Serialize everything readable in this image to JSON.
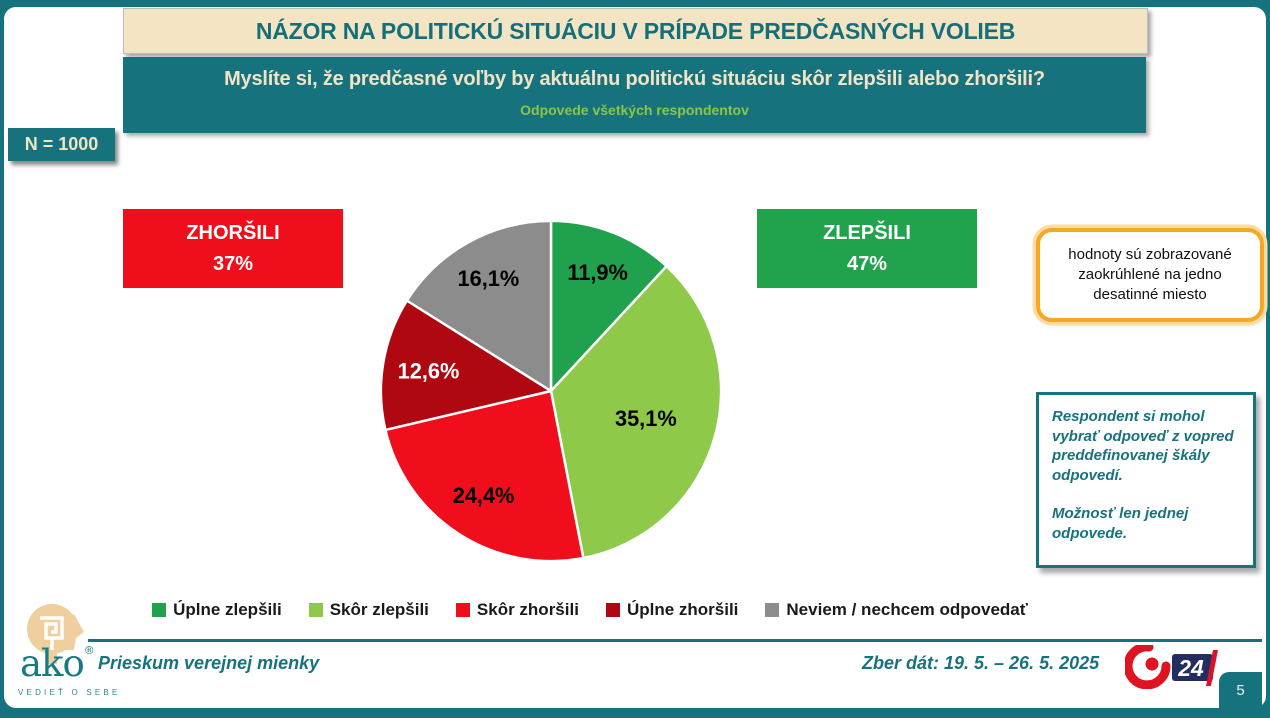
{
  "slide": {
    "title": "NÁZOR NA POLITICKÚ SITUÁCIU V PRÍPADE PREDČASNÝCH VOLIEB",
    "question": "Myslíte si, že predčasné voľby by aktuálnu politickú situáciu skôr zlepšili alebo zhoršili?",
    "subtitle": "Odpovede všetkých respondentov",
    "sample_size": "N = 1000",
    "page_number": "5"
  },
  "summary_boxes": {
    "worse": {
      "label": "ZHORŠILI",
      "value": "37%"
    },
    "better": {
      "label": "ZLEPŠILI",
      "value": "47%"
    }
  },
  "notes": {
    "rounding": "hodnoty sú zobrazované zaokrúhlené na jedno desatinné miesto",
    "method_1": "Respondent si mohol vybrať odpoveď z vopred preddefinovanej škály odpovedí.",
    "method_2": "Možnosť len jednej odpovede."
  },
  "chart_data": {
    "type": "pie",
    "categories": [
      "Úplne zlepšili",
      "Skôr zlepšili",
      "Skôr zhoršili",
      "Úplne zhoršili",
      "Neviem / nechcem odpovedať"
    ],
    "values": [
      11.9,
      35.1,
      24.4,
      12.6,
      16.1
    ],
    "labels": [
      "11,9%",
      "35,1%",
      "24,4%",
      "12,6%",
      "16,1%"
    ],
    "colors": [
      "#1fa14d",
      "#8fc94a",
      "#f10e1c",
      "#b00811",
      "#8c8c8c"
    ],
    "label_colors": [
      "#000000",
      "#000000",
      "#000000",
      "#ffffff",
      "#000000"
    ],
    "label_radius": [
      0.75,
      0.58,
      0.73,
      0.73,
      0.76
    ],
    "start_angle": 0,
    "direction": "clockwise",
    "legend_position": "bottom",
    "grouped_totals": {
      "zlepsili": 47,
      "zhorsili": 37
    }
  },
  "footer": {
    "left_text": "Prieskum verejnej mienky",
    "right_text": "Zber dát: 19. 5. – 26. 5. 2025",
    "ako_logo": {
      "word": "ako",
      "reg": "®",
      "tagline": "VEDIEŤ O SEBE"
    },
    "channel_logo": {
      "number": "24"
    }
  },
  "colors": {
    "teal": "#16737e",
    "cream": "#f3e4c4",
    "accent_green": "#8dc63f",
    "red": "#f10e1c",
    "green": "#21a24d",
    "navy": "#232d5e"
  }
}
